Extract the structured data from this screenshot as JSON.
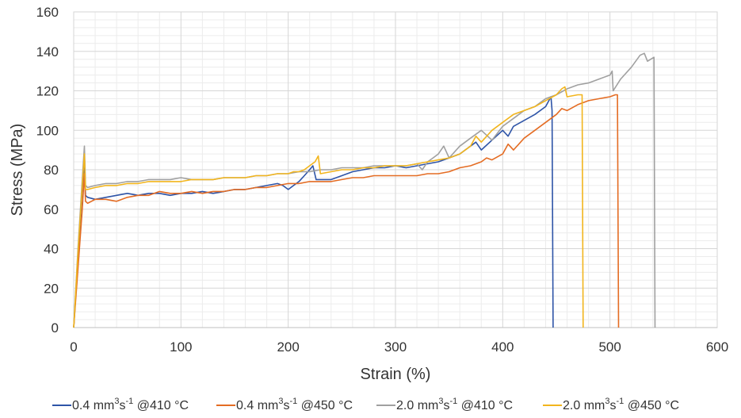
{
  "chart_data": {
    "type": "line",
    "title": "",
    "xlabel": "Strain (%)",
    "ylabel": "Stress (MPa)",
    "xlim": [
      0,
      600
    ],
    "ylim": [
      0,
      160
    ],
    "xticks": [
      "0",
      "100",
      "200",
      "300",
      "400",
      "500",
      "600"
    ],
    "yticks": [
      "0",
      "20",
      "40",
      "60",
      "80",
      "100",
      "120",
      "140",
      "160"
    ],
    "grid": true,
    "minor_grid": true,
    "legend_position": "bottom",
    "series": [
      {
        "name": "0.4 mm3s-1 @410 °C",
        "legend": {
          "pre": "0.4 mm",
          "sup1": "3",
          "mid": "s",
          "sup2": "-1",
          "post": " @410 °C"
        },
        "color": "#2E54A7",
        "x": [
          0,
          4,
          8,
          10,
          11,
          13,
          20,
          30,
          40,
          50,
          60,
          70,
          80,
          90,
          100,
          110,
          120,
          130,
          140,
          150,
          160,
          170,
          180,
          190,
          195,
          200,
          205,
          210,
          215,
          220,
          223,
          226,
          230,
          240,
          250,
          260,
          270,
          280,
          290,
          300,
          310,
          320,
          330,
          340,
          350,
          360,
          370,
          375,
          380,
          390,
          400,
          405,
          410,
          420,
          430,
          440,
          445,
          446,
          447
        ],
        "y": [
          0,
          35,
          70,
          82,
          67,
          66,
          65,
          66,
          67,
          68,
          67,
          68,
          68,
          67,
          68,
          68,
          69,
          68,
          69,
          70,
          70,
          71,
          72,
          73,
          72,
          70,
          72,
          74,
          77,
          80,
          82,
          75,
          75,
          75,
          77,
          79,
          80,
          81,
          81,
          82,
          81,
          82,
          83,
          84,
          86,
          88,
          92,
          94,
          90,
          95,
          100,
          97,
          102,
          105,
          108,
          112,
          117,
          110,
          0
        ]
      },
      {
        "name": "0.4 mm3s-1 @450 °C",
        "legend": {
          "pre": "0.4 mm",
          "sup1": "3",
          "mid": "s",
          "sup2": "-1",
          "post": " @450 °C"
        },
        "color": "#E46C23",
        "x": [
          0,
          4,
          8,
          10,
          11,
          13,
          20,
          30,
          40,
          50,
          60,
          70,
          80,
          90,
          100,
          110,
          120,
          130,
          140,
          150,
          160,
          170,
          180,
          190,
          200,
          210,
          220,
          230,
          240,
          250,
          260,
          270,
          280,
          290,
          300,
          310,
          320,
          330,
          340,
          350,
          360,
          370,
          380,
          385,
          390,
          400,
          405,
          410,
          420,
          430,
          440,
          450,
          455,
          460,
          470,
          480,
          490,
          500,
          505,
          507,
          508
        ],
        "y": [
          0,
          30,
          60,
          78,
          64,
          63,
          65,
          65,
          64,
          66,
          67,
          67,
          69,
          68,
          68,
          69,
          68,
          69,
          69,
          70,
          70,
          71,
          71,
          72,
          73,
          73,
          74,
          74,
          74,
          75,
          76,
          76,
          77,
          77,
          77,
          77,
          77,
          78,
          78,
          79,
          81,
          82,
          84,
          86,
          85,
          88,
          93,
          90,
          96,
          100,
          104,
          108,
          111,
          110,
          113,
          115,
          116,
          117,
          118,
          118,
          0
        ]
      },
      {
        "name": "2.0 mm3s-1 @410 °C",
        "legend": {
          "pre": "2.0 mm",
          "sup1": "3",
          "mid": "s",
          "sup2": "-1",
          "post": " @410 °C"
        },
        "color": "#A0A0A0",
        "x": [
          0,
          4,
          8,
          10,
          11,
          13,
          20,
          30,
          40,
          50,
          60,
          70,
          80,
          90,
          100,
          110,
          120,
          130,
          140,
          150,
          160,
          170,
          180,
          190,
          200,
          210,
          220,
          230,
          240,
          250,
          260,
          270,
          280,
          290,
          300,
          310,
          320,
          325,
          330,
          335,
          340,
          345,
          350,
          360,
          370,
          380,
          390,
          400,
          410,
          420,
          430,
          440,
          450,
          460,
          470,
          480,
          490,
          500,
          502,
          503,
          510,
          520,
          528,
          532,
          535,
          538,
          541,
          542
        ],
        "y": [
          0,
          40,
          75,
          92,
          72,
          71,
          72,
          73,
          73,
          74,
          74,
          75,
          75,
          75,
          76,
          75,
          75,
          75,
          76,
          76,
          76,
          77,
          77,
          78,
          78,
          79,
          79,
          80,
          80,
          81,
          81,
          81,
          82,
          82,
          82,
          82,
          83,
          80,
          84,
          86,
          88,
          92,
          86,
          92,
          96,
          100,
          95,
          102,
          106,
          110,
          112,
          116,
          118,
          121,
          123,
          124,
          126,
          128,
          130,
          120,
          126,
          132,
          138,
          139,
          135,
          136,
          137,
          0
        ]
      },
      {
        "name": "2.0 mm3s-1 @450 °C",
        "legend": {
          "pre": "2.0 mm",
          "sup1": "3",
          "mid": "s",
          "sup2": "-1",
          "post": " @450 °C"
        },
        "color": "#F2B51D",
        "x": [
          0,
          4,
          8,
          10,
          11,
          13,
          20,
          30,
          40,
          50,
          60,
          70,
          80,
          90,
          100,
          110,
          120,
          130,
          140,
          150,
          160,
          170,
          180,
          190,
          200,
          205,
          210,
          215,
          220,
          225,
          228,
          230,
          240,
          250,
          260,
          270,
          280,
          290,
          300,
          310,
          320,
          330,
          340,
          350,
          360,
          370,
          375,
          380,
          390,
          400,
          410,
          420,
          430,
          440,
          450,
          455,
          458,
          460,
          470,
          474,
          475
        ],
        "y": [
          0,
          38,
          72,
          88,
          70,
          70,
          71,
          72,
          72,
          73,
          73,
          74,
          74,
          74,
          74,
          75,
          75,
          75,
          76,
          76,
          76,
          77,
          77,
          78,
          78,
          79,
          79,
          80,
          82,
          84,
          87,
          78,
          79,
          80,
          80,
          81,
          81,
          82,
          82,
          82,
          83,
          84,
          85,
          86,
          88,
          92,
          97,
          94,
          100,
          104,
          108,
          110,
          112,
          115,
          118,
          121,
          122,
          117,
          118,
          118,
          0
        ]
      }
    ]
  }
}
